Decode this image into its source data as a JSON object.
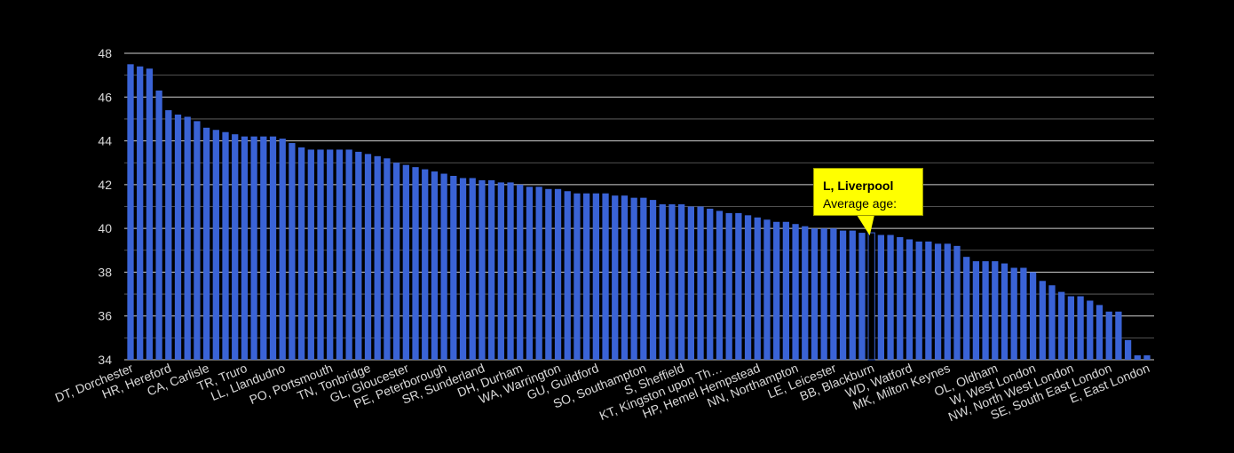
{
  "chart_data": {
    "type": "bar",
    "ylim": [
      34,
      48
    ],
    "yticks": [
      34,
      36,
      38,
      40,
      42,
      44,
      46,
      48
    ],
    "grid": true,
    "bar_color": "#3a63d6",
    "background": "#000000",
    "x_tick_labels": [
      "DT, Dorchester",
      "HR, Hereford",
      "CA, Carlisle",
      "TR, Truro",
      "LL, Llandudno",
      "PO, Portsmouth",
      "TN, Tonbridge",
      "GL, Gloucester",
      "PE, Peterborough",
      "SR, Sunderland",
      "DH, Durham",
      "WA, Warrington",
      "GU, Guildford",
      "SO, Southampton",
      "S, Sheffield",
      "KT, Kingston upon Th…",
      "HP, Hemel Hempstead",
      "NN, Northampton",
      "LE, Leicester",
      "BB, Blackburn",
      "WD, Watford",
      "MK, Milton Keynes",
      "OL, Oldham",
      "W, West London",
      "NW, North West London",
      "SE, South East London",
      "E, East London"
    ],
    "values": [
      47.5,
      47.4,
      47.3,
      46.3,
      45.4,
      45.2,
      45.1,
      44.9,
      44.6,
      44.5,
      44.4,
      44.3,
      44.2,
      44.2,
      44.2,
      44.2,
      44.1,
      43.9,
      43.7,
      43.6,
      43.6,
      43.6,
      43.6,
      43.6,
      43.5,
      43.4,
      43.3,
      43.2,
      43.0,
      42.9,
      42.8,
      42.7,
      42.6,
      42.5,
      42.4,
      42.3,
      42.3,
      42.2,
      42.2,
      42.1,
      42.1,
      42.0,
      41.9,
      41.9,
      41.8,
      41.8,
      41.7,
      41.6,
      41.6,
      41.6,
      41.6,
      41.5,
      41.5,
      41.4,
      41.4,
      41.3,
      41.1,
      41.1,
      41.1,
      41.0,
      41.0,
      40.9,
      40.8,
      40.7,
      40.7,
      40.6,
      40.5,
      40.4,
      40.3,
      40.3,
      40.2,
      40.1,
      40.0,
      40.0,
      40.0,
      39.9,
      39.9,
      39.8,
      39.8,
      39.7,
      39.7,
      39.6,
      39.5,
      39.4,
      39.4,
      39.3,
      39.3,
      39.2,
      38.7,
      38.5,
      38.5,
      38.5,
      38.4,
      38.2,
      38.2,
      38.0,
      37.6,
      37.4,
      37.1,
      36.9,
      36.9,
      36.7,
      36.5,
      36.2,
      36.2,
      34.9,
      34.2,
      34.2
    ],
    "highlight_index": 78,
    "tooltip": {
      "title": "L, Liverpool",
      "label": "Average age: ",
      "value": "39.8"
    }
  }
}
